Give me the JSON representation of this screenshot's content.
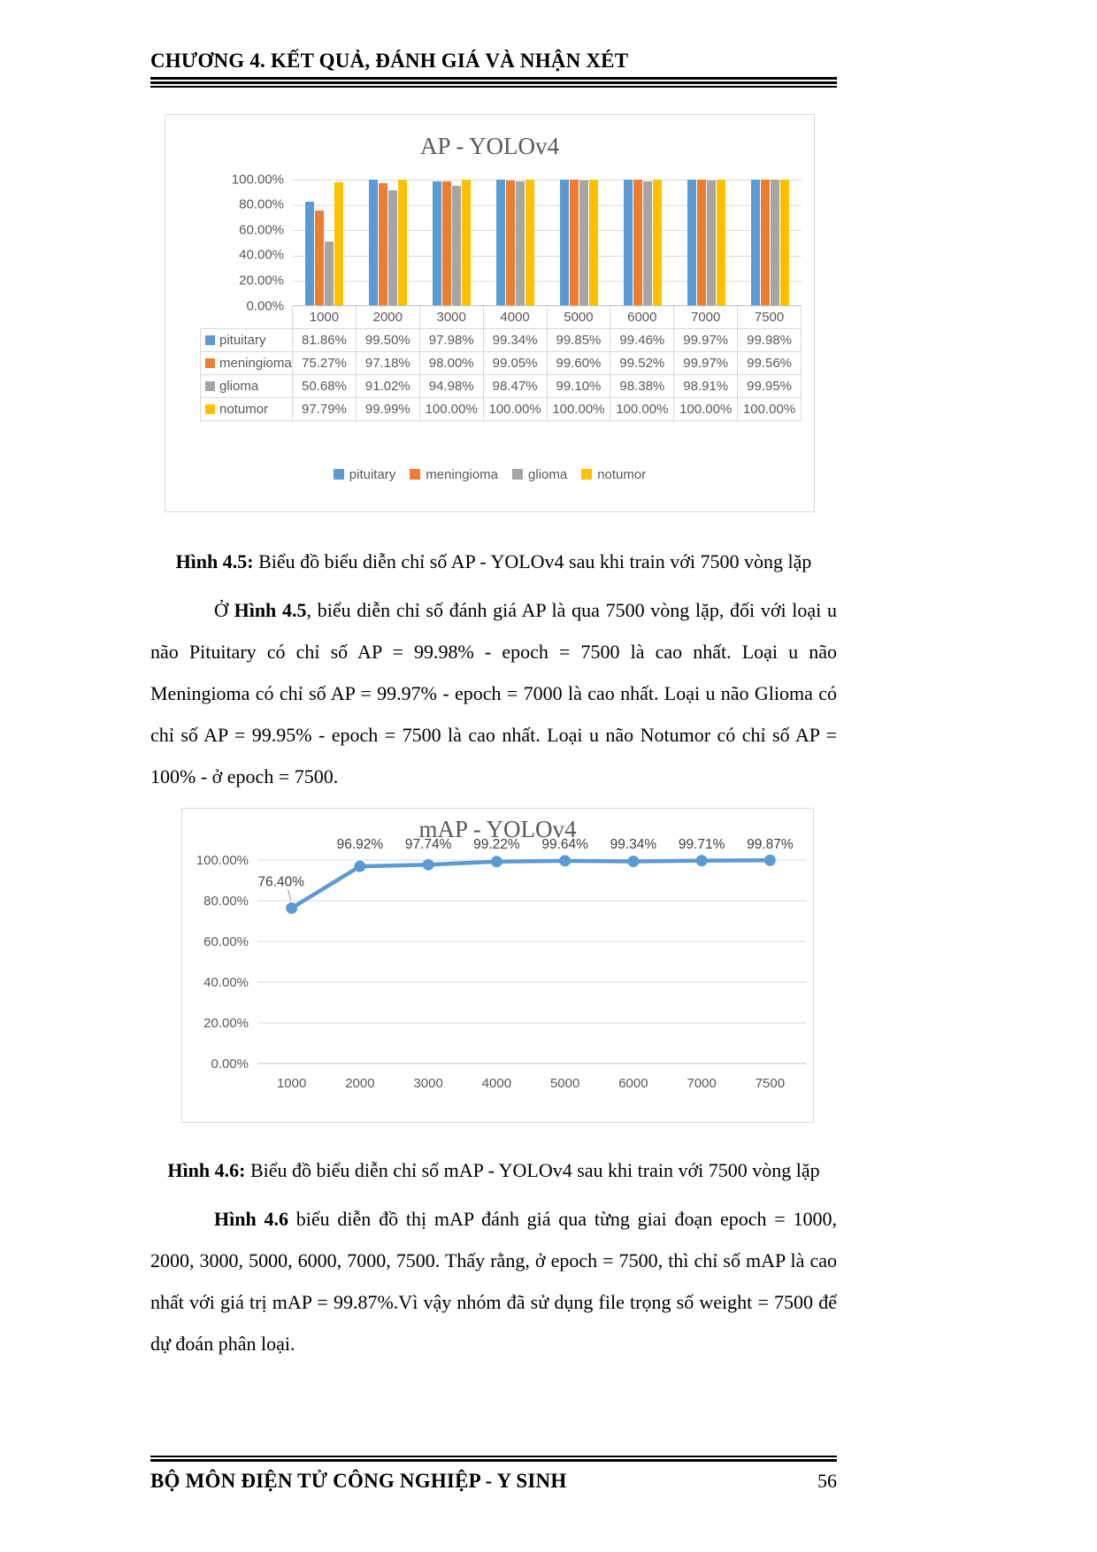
{
  "header": {
    "title": "CHƯƠNG 4. KẾT QUẢ, ĐÁNH GIÁ VÀ NHẬN XÉT"
  },
  "footer": {
    "department": "BỘ MÔN ĐIỆN TỬ CÔNG NGHIỆP - Y SINH",
    "page_number": "56"
  },
  "chart_data": [
    {
      "type": "bar",
      "title": "AP - YOLOv4",
      "categories": [
        "1000",
        "2000",
        "3000",
        "4000",
        "5000",
        "6000",
        "7000",
        "7500"
      ],
      "series": [
        {
          "name": "pituitary",
          "color": "#5B9BD5",
          "values": [
            81.86,
            99.5,
            97.98,
            99.34,
            99.85,
            99.46,
            99.97,
            99.98
          ],
          "labels": [
            "81.86%",
            "99.50%",
            "97.98%",
            "99.34%",
            "99.85%",
            "99.46%",
            "99.97%",
            "99.98%"
          ]
        },
        {
          "name": "meningioma",
          "color": "#ED7D31",
          "values": [
            75.27,
            97.18,
            98.0,
            99.05,
            99.6,
            99.52,
            99.97,
            99.56
          ],
          "labels": [
            "75.27%",
            "97.18%",
            "98.00%",
            "99.05%",
            "99.60%",
            "99.52%",
            "99.97%",
            "99.56%"
          ]
        },
        {
          "name": "glioma",
          "color": "#A5A5A5",
          "values": [
            50.68,
            91.02,
            94.98,
            98.47,
            99.1,
            98.38,
            98.91,
            99.95
          ],
          "labels": [
            "50.68%",
            "91.02%",
            "94.98%",
            "98.47%",
            "99.10%",
            "98.38%",
            "98.91%",
            "99.95%"
          ]
        },
        {
          "name": "notumor",
          "color": "#FFC000",
          "values": [
            97.79,
            99.99,
            100.0,
            100.0,
            100.0,
            100.0,
            100.0,
            100.0
          ],
          "labels": [
            "97.79%",
            "99.99%",
            "100.00%",
            "100.00%",
            "100.00%",
            "100.00%",
            "100.00%",
            "100.00%"
          ]
        }
      ],
      "y_ticks": [
        "100.00%",
        "80.00%",
        "60.00%",
        "40.00%",
        "20.00%",
        "0.00%"
      ],
      "ylim": [
        0,
        100
      ],
      "grid": true,
      "legend_position": "bottom",
      "data_table": true
    },
    {
      "type": "line",
      "title": "mAP - YOLOv4",
      "categories": [
        "1000",
        "2000",
        "3000",
        "4000",
        "5000",
        "6000",
        "7000",
        "7500"
      ],
      "series": [
        {
          "name": "mAP",
          "color": "#5B9BD5",
          "values": [
            76.4,
            96.92,
            97.74,
            99.22,
            99.64,
            99.34,
            99.71,
            99.87
          ],
          "labels": [
            "76.40%",
            "96.92%",
            "97.74%",
            "99.22%",
            "99.64%",
            "99.34%",
            "99.71%",
            "99.87%"
          ]
        }
      ],
      "y_ticks": [
        "100.00%",
        "80.00%",
        "60.00%",
        "40.00%",
        "20.00%",
        "0.00%"
      ],
      "ylim": [
        0,
        100
      ],
      "grid": true,
      "legend_position": "none"
    }
  ],
  "captions": {
    "fig45": {
      "bold": "Hình 4.5:",
      "text": " Biểu đồ biểu diễn chỉ số AP - YOLOv4 sau khi train với 7500 vòng lặp"
    },
    "fig46": {
      "bold": "Hình 4.6:",
      "text": " Biểu đồ biểu diễn chỉ số mAP - YOLOv4 sau khi train với 7500 vòng lặp"
    }
  },
  "paragraphs": {
    "p1": {
      "pre": "Ở ",
      "bold": "Hình 4.5",
      "rest": ", biểu diễn chỉ số đánh giá AP là qua 7500 vòng lặp, đối với loại u não Pituitary có chỉ số AP = 99.98% - epoch = 7500 là cao nhất. Loại u não Meningioma có chỉ số AP = 99.97% - epoch = 7000 là cao nhất. Loại u não Glioma có chỉ số AP = 99.95% - epoch = 7500 là cao nhất. Loại u não Notumor có chỉ số AP = 100% - ở epoch = 7500."
    },
    "p2": {
      "bold": "Hình 4.6",
      "rest": " biểu diễn đồ thị mAP đánh giá qua từng giai đoạn epoch = 1000, 2000, 3000, 5000, 6000, 7000, 7500. Thấy rằng, ở epoch = 7500, thì chỉ số mAP là cao nhất với giá trị mAP = 99.87%.Vì vậy nhóm đã sử dụng file trọng số weight = 7500 để dự đoán phân loại."
    }
  }
}
